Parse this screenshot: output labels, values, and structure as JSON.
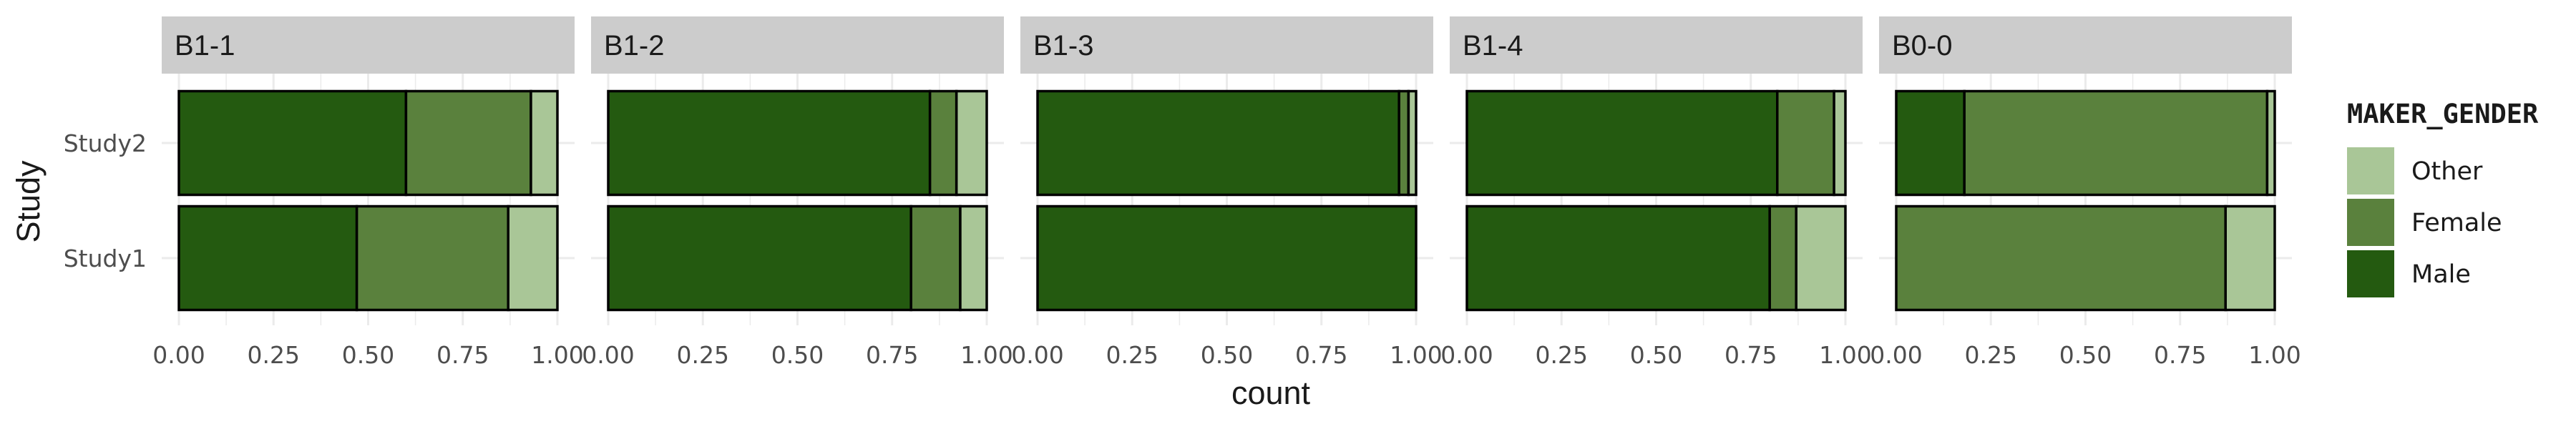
{
  "chart_data": {
    "type": "bar",
    "orientation": "horizontal",
    "stacked": true,
    "xlabel": "count",
    "ylabel": "Study",
    "xlim": [
      0,
      1
    ],
    "x_tick_labels": [
      "0.00",
      "0.25",
      "0.50",
      "0.75",
      "1.00"
    ],
    "categories": [
      "Study2",
      "Study1"
    ],
    "legend": {
      "title": "MAKER_GENDER",
      "entries": [
        "Other",
        "Female",
        "Male"
      ],
      "position": "right"
    },
    "colors": {
      "Male": "#245a10",
      "Female": "#5a813d",
      "Other": "#a9c697",
      "strip": "#cccccc",
      "grid": "#ebebeb"
    },
    "panels": [
      {
        "label": "B1-1",
        "bars": {
          "Study2": {
            "Male": 0.6,
            "Female": 0.33,
            "Other": 0.07
          },
          "Study1": {
            "Male": 0.47,
            "Female": 0.4,
            "Other": 0.13
          }
        }
      },
      {
        "label": "B1-2",
        "bars": {
          "Study2": {
            "Male": 0.85,
            "Female": 0.07,
            "Other": 0.08
          },
          "Study1": {
            "Male": 0.8,
            "Female": 0.13,
            "Other": 0.07
          }
        }
      },
      {
        "label": "B1-3",
        "bars": {
          "Study2": {
            "Male": 0.955,
            "Female": 0.025,
            "Other": 0.02
          },
          "Study1": {
            "Male": 1.0,
            "Female": 0.0,
            "Other": 0.0
          }
        }
      },
      {
        "label": "B1-4",
        "bars": {
          "Study2": {
            "Male": 0.82,
            "Female": 0.15,
            "Other": 0.03
          },
          "Study1": {
            "Male": 0.8,
            "Female": 0.07,
            "Other": 0.13
          }
        }
      },
      {
        "label": "B0-0",
        "bars": {
          "Study2": {
            "Male": 0.18,
            "Female": 0.8,
            "Other": 0.02
          },
          "Study1": {
            "Male": 0.0,
            "Female": 0.87,
            "Other": 0.13
          }
        }
      }
    ]
  }
}
